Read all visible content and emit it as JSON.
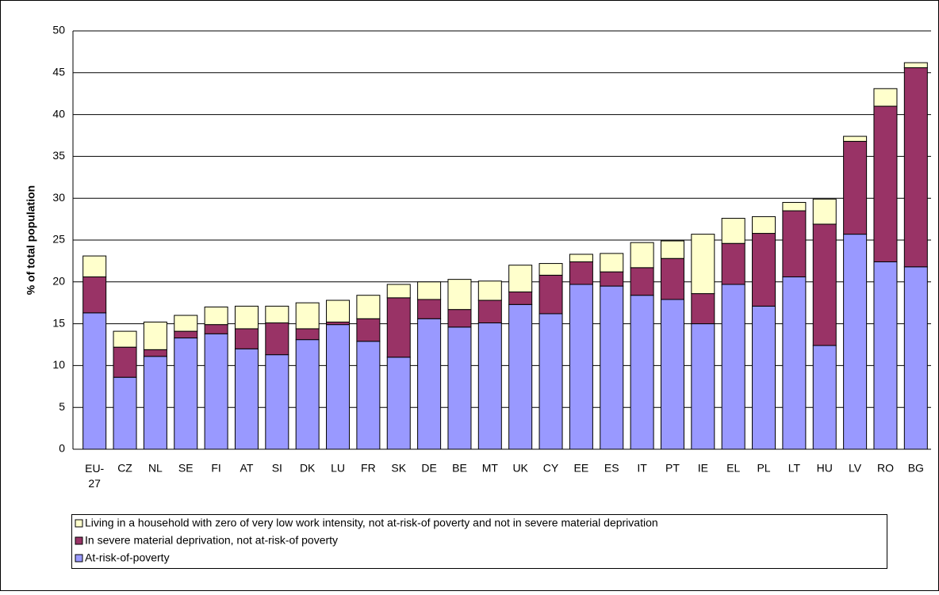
{
  "chart_data": {
    "type": "stacked-bar",
    "y_label": "% of total population",
    "categories": [
      "EU-27",
      "CZ",
      "NL",
      "SE",
      "FI",
      "AT",
      "SI",
      "DK",
      "LU",
      "FR",
      "SK",
      "DE",
      "BE",
      "MT",
      "UK",
      "CY",
      "EE",
      "ES",
      "IT",
      "PT",
      "IE",
      "EL",
      "PL",
      "LT",
      "HU",
      "LV",
      "RO",
      "BG"
    ],
    "series": [
      {
        "name": "At-risk-of-poverty",
        "color": "#9999ff",
        "values": [
          16.3,
          8.6,
          11.1,
          13.3,
          13.8,
          12.0,
          11.3,
          13.1,
          14.9,
          12.9,
          11.0,
          15.6,
          14.6,
          15.1,
          17.3,
          16.2,
          19.7,
          19.5,
          18.4,
          17.9,
          15.0,
          19.7,
          17.1,
          20.6,
          12.4,
          25.7,
          22.4,
          21.8
        ]
      },
      {
        "name": "In severe material deprivation, not at-risk-of poverty",
        "color": "#993366",
        "values": [
          4.3,
          3.6,
          0.8,
          0.8,
          1.1,
          2.4,
          3.8,
          1.3,
          0.3,
          2.7,
          7.1,
          2.3,
          2.1,
          2.7,
          1.5,
          4.6,
          2.7,
          1.7,
          3.3,
          4.9,
          3.6,
          4.9,
          8.7,
          7.9,
          14.5,
          11.1,
          18.6,
          23.8
        ]
      },
      {
        "name": "Living in a household with zero of very low work intensity, not at-risk-of poverty and not in severe material deprivation",
        "color": "#ffffcc",
        "values": [
          2.5,
          1.9,
          3.3,
          1.9,
          2.1,
          2.7,
          2.0,
          3.1,
          2.6,
          2.8,
          1.6,
          2.1,
          3.6,
          2.3,
          3.2,
          1.4,
          0.9,
          2.2,
          3.0,
          2.1,
          7.1,
          3.0,
          2.0,
          1.0,
          3.0,
          0.6,
          2.1,
          0.6
        ]
      }
    ],
    "ylim": [
      0,
      50
    ],
    "yticks": [
      0,
      5,
      10,
      15,
      20,
      25,
      30,
      35,
      40,
      45,
      50
    ],
    "grid": true
  }
}
